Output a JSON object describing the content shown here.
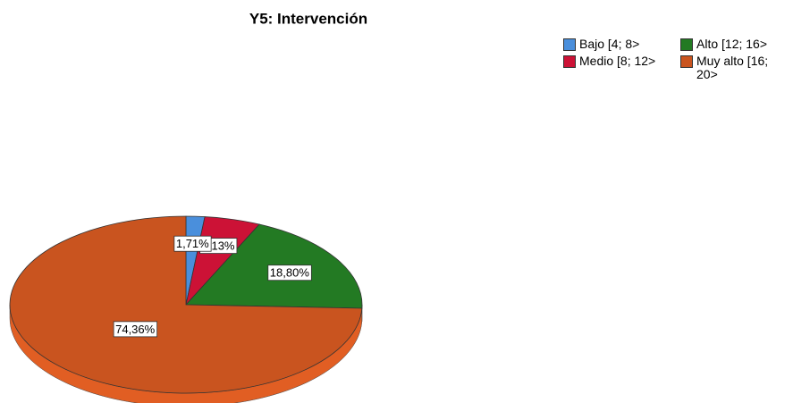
{
  "chart_data": {
    "type": "pie",
    "title": "Y5: Intervención",
    "categories": [
      "Bajo [4; 8>",
      "Medio [8; 12>",
      "Alto [12; 16>",
      "Muy alto [16; 20>"
    ],
    "values": [
      1.71,
      5.13,
      18.8,
      74.36
    ],
    "value_labels": [
      "1,71%",
      "5,13%",
      "18,80%",
      "74,36%"
    ],
    "colors": [
      "#4a8fdc",
      "#cc1236",
      "#237a23",
      "#c9541f"
    ],
    "legend": "top-right"
  }
}
